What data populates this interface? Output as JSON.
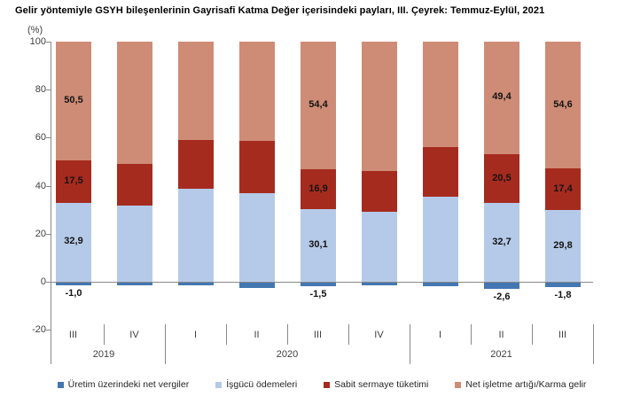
{
  "chart_data": {
    "type": "bar",
    "stacked": true,
    "title": "Gelir yöntemiyle GSYH bileşenlerinin Gayrisafi Katma Değer içerisindeki payları, III. Çeyrek: Temmuz-Eylül, 2021",
    "ylabel": "(%)",
    "ylim": [
      -20,
      100
    ],
    "y_ticks": [
      100,
      80,
      60,
      40,
      20,
      0,
      -20
    ],
    "grid": false,
    "legend_position": "bottom",
    "categories": [
      "III",
      "IV",
      "I",
      "II",
      "III",
      "IV",
      "I",
      "II",
      "III"
    ],
    "year_groups": [
      {
        "label": "2019",
        "start": 0,
        "span": 2
      },
      {
        "label": "2020",
        "start": 2,
        "span": 4
      },
      {
        "label": "2021",
        "start": 6,
        "span": 3
      }
    ],
    "series": [
      {
        "key": "net-vergiler",
        "name": "Üretim üzerindeki net vergiler",
        "color": "#4377B2",
        "values": [
          -1.0,
          -1.0,
          -1.2,
          -2.2,
          -1.5,
          -1.2,
          -1.6,
          -2.6,
          -1.8
        ],
        "labels": [
          "-1,0",
          "",
          "",
          "",
          "-1,5",
          "",
          "",
          "-2,6",
          "-1,8"
        ]
      },
      {
        "key": "isgucu-odemeleri",
        "name": "İşgücü ödemeleri",
        "color": "#B5CAE8",
        "values": [
          32.9,
          31.7,
          38.7,
          36.8,
          30.1,
          29.0,
          35.5,
          32.7,
          29.8
        ],
        "labels": [
          "32,9",
          "",
          "",
          "",
          "30,1",
          "",
          "",
          "32,7",
          "29,8"
        ]
      },
      {
        "key": "sabit-sermaye-tuketimi",
        "name": "Sabit sermaye tüketimi",
        "color": "#A62B1F",
        "values": [
          17.5,
          17.4,
          20.3,
          21.8,
          16.9,
          17.2,
          20.6,
          20.5,
          17.4
        ],
        "labels": [
          "17,5",
          "",
          "",
          "",
          "16,9",
          "",
          "",
          "20,5",
          "17,4"
        ]
      },
      {
        "key": "net-isletme-artigi",
        "name": "Net işletme artığı/Karma gelir",
        "color": "#CE8C76",
        "values": [
          50.5,
          50.9,
          41.0,
          41.4,
          54.4,
          53.8,
          43.9,
          49.4,
          54.6
        ],
        "labels": [
          "50,5",
          "",
          "",
          "",
          "54,4",
          "",
          "",
          "49,4",
          "54,6"
        ]
      }
    ],
    "colors": {
      "axis": "#898989",
      "axis_text": "#3f3f3f",
      "bar_label_text": "#141414",
      "title_text": "#000000",
      "background": "#ffffff"
    }
  }
}
